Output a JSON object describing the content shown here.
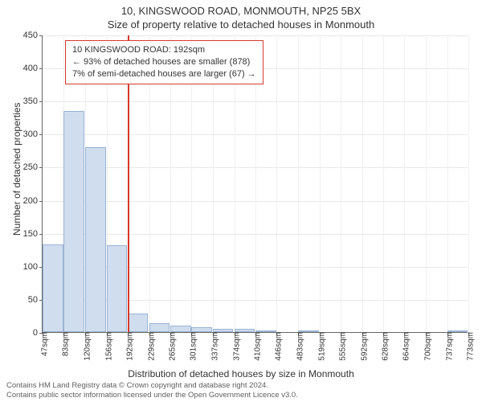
{
  "title": "10, KINGSWOOD ROAD, MONMOUTH, NP25 5BX",
  "subtitle": "Size of property relative to detached houses in Monmouth",
  "chart": {
    "type": "histogram",
    "ylabel": "Number of detached properties",
    "xlabel": "Distribution of detached houses by size in Monmouth",
    "ylim": [
      0,
      450
    ],
    "ytick_step": 50,
    "background_color": "#ffffff",
    "grid_color": "#e8e8e8",
    "axis_color": "#666666",
    "bar_fill": "#cfddef",
    "bar_border": "#9ab3d4",
    "marker_line_color": "#d43a2f",
    "marker_x": 192,
    "x_tick_labels": [
      "47sqm",
      "83sqm",
      "120sqm",
      "156sqm",
      "192sqm",
      "229sqm",
      "265sqm",
      "301sqm",
      "337sqm",
      "374sqm",
      "410sqm",
      "446sqm",
      "483sqm",
      "519sqm",
      "555sqm",
      "592sqm",
      "628sqm",
      "664sqm",
      "700sqm",
      "737sqm",
      "773sqm"
    ],
    "x_tick_values": [
      47,
      83,
      120,
      156,
      192,
      229,
      265,
      301,
      337,
      374,
      410,
      446,
      483,
      519,
      555,
      592,
      628,
      664,
      700,
      737,
      773
    ],
    "bar_bin_width": 36.3,
    "bars": [
      {
        "x": 47,
        "count": 132
      },
      {
        "x": 83,
        "count": 335
      },
      {
        "x": 120,
        "count": 280
      },
      {
        "x": 156,
        "count": 131
      },
      {
        "x": 192,
        "count": 28
      },
      {
        "x": 229,
        "count": 13
      },
      {
        "x": 265,
        "count": 10
      },
      {
        "x": 301,
        "count": 7
      },
      {
        "x": 337,
        "count": 5
      },
      {
        "x": 374,
        "count": 5
      },
      {
        "x": 410,
        "count": 3
      },
      {
        "x": 446,
        "count": 0
      },
      {
        "x": 483,
        "count": 2
      },
      {
        "x": 519,
        "count": 0
      },
      {
        "x": 555,
        "count": 0
      },
      {
        "x": 592,
        "count": 0
      },
      {
        "x": 628,
        "count": 0
      },
      {
        "x": 664,
        "count": 0
      },
      {
        "x": 700,
        "count": 0
      },
      {
        "x": 737,
        "count": 2
      }
    ],
    "callout": {
      "line1": "10 KINGSWOOD ROAD: 192sqm",
      "line2": "← 93% of detached houses are smaller (878)",
      "line3": "7% of semi-detached houses are larger (67) →",
      "border_color": "#d43a2f",
      "text_color": "#333333",
      "fontsize": 11
    },
    "title_fontsize": 13,
    "label_fontsize": 12,
    "tick_fontsize": 11
  },
  "footer": {
    "line1": "Contains HM Land Registry data © Crown copyright and database right 2024.",
    "line2": "Contains public sector information licensed under the Open Government Licence v3.0.",
    "color": "#606060",
    "fontsize": 9.5
  }
}
